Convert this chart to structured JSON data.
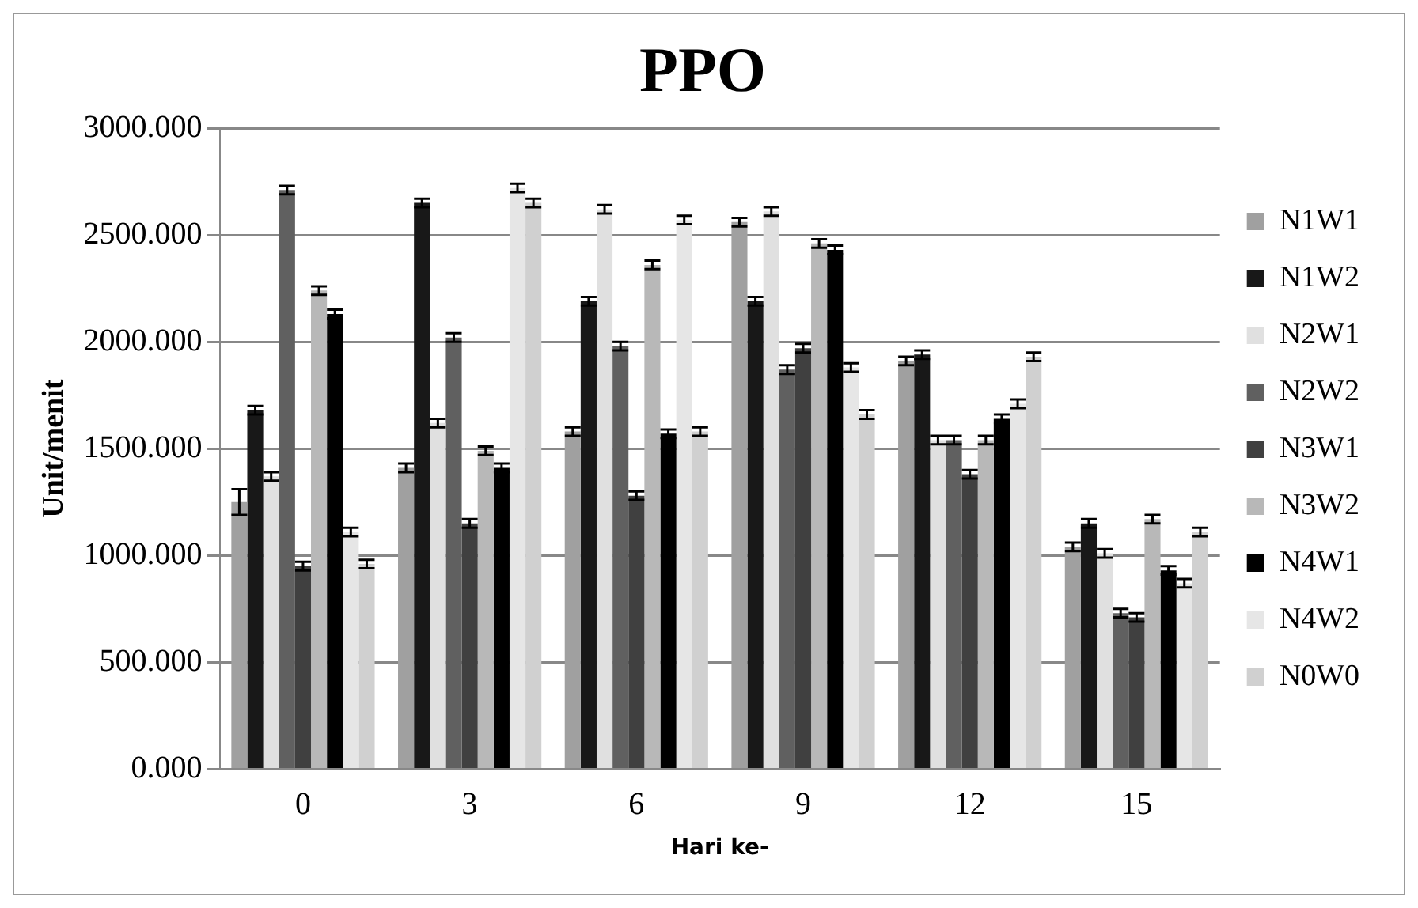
{
  "chart_data": {
    "type": "bar",
    "title": "PPO",
    "xlabel": "Hari ke-",
    "ylabel": "Unit/menit",
    "categories": [
      "0",
      "3",
      "6",
      "9",
      "12",
      "15"
    ],
    "ylim": [
      0,
      3000
    ],
    "yticks": [
      {
        "value": 0,
        "label": "0.000"
      },
      {
        "value": 500,
        "label": "500.000"
      },
      {
        "value": 1000,
        "label": "1000.000"
      },
      {
        "value": 1500,
        "label": "1500.000"
      },
      {
        "value": 2000,
        "label": "2000.000"
      },
      {
        "value": 2500,
        "label": "2500.000"
      },
      {
        "value": 3000,
        "label": "3000.000"
      }
    ],
    "grid": "y",
    "legend": "right",
    "series": [
      {
        "name": "N1W1",
        "color": "#a0a0a0",
        "values": [
          1250,
          1410,
          1580,
          2560,
          1910,
          1040
        ],
        "errors": [
          60,
          20,
          20,
          20,
          20,
          20
        ]
      },
      {
        "name": "N1W2",
        "color": "#181818",
        "values": [
          1680,
          2650,
          2190,
          2190,
          1940,
          1150
        ],
        "errors": [
          20,
          20,
          20,
          20,
          20,
          20
        ]
      },
      {
        "name": "N2W1",
        "color": "#e0e0e0",
        "values": [
          1370,
          1620,
          2620,
          2610,
          1540,
          1010
        ],
        "errors": [
          20,
          20,
          20,
          20,
          20,
          20
        ]
      },
      {
        "name": "N2W2",
        "color": "#606060",
        "values": [
          2710,
          2020,
          1980,
          1870,
          1540,
          730
        ],
        "errors": [
          20,
          20,
          20,
          20,
          20,
          20
        ]
      },
      {
        "name": "N3W1",
        "color": "#404040",
        "values": [
          950,
          1150,
          1280,
          1970,
          1380,
          710
        ],
        "errors": [
          20,
          20,
          20,
          20,
          20,
          20
        ]
      },
      {
        "name": "N3W2",
        "color": "#b8b8b8",
        "values": [
          2240,
          1490,
          2360,
          2460,
          1540,
          1170
        ],
        "errors": [
          20,
          20,
          20,
          20,
          20,
          20
        ]
      },
      {
        "name": "N4W1",
        "color": "#000000",
        "values": [
          2130,
          1410,
          1570,
          2430,
          1640,
          930
        ],
        "errors": [
          20,
          20,
          20,
          20,
          20,
          20
        ]
      },
      {
        "name": "N4W2",
        "color": "#e6e6e6",
        "values": [
          1110,
          2720,
          2570,
          1880,
          1710,
          870
        ],
        "errors": [
          20,
          20,
          20,
          20,
          20,
          20
        ]
      },
      {
        "name": "N0W0",
        "color": "#d0d0d0",
        "values": [
          960,
          2650,
          1580,
          1660,
          1930,
          1110
        ],
        "errors": [
          20,
          20,
          20,
          20,
          20,
          20
        ]
      }
    ]
  }
}
